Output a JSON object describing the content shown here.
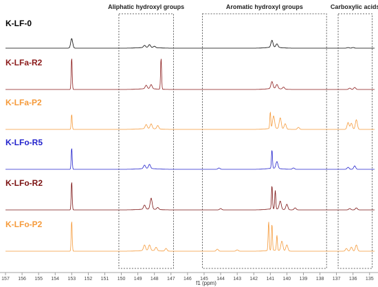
{
  "chart_data": {
    "type": "line",
    "xlabel": "f1 (ppm)",
    "xlim": [
      157,
      134.7
    ],
    "x_ticks": [
      157,
      156,
      155,
      154,
      153,
      152,
      151,
      150,
      149,
      148,
      147,
      146,
      145,
      144,
      143,
      142,
      141,
      140,
      139,
      138,
      137,
      136,
      135
    ],
    "regions": [
      {
        "label": "Aliphatic hydroxyl groups",
        "from": 150.15,
        "to": 146.85
      },
      {
        "label": "Aromatic hydroxyl groups",
        "from": 145.1,
        "to": 137.6
      },
      {
        "label": "Carboxylic acids",
        "from": 136.9,
        "to": 134.85
      }
    ],
    "series": [
      {
        "name": "K-LF-0",
        "color": "#000000",
        "peaks": [
          [
            153.0,
            14
          ],
          [
            148.6,
            3
          ],
          [
            148.3,
            4
          ],
          [
            148.0,
            2
          ],
          [
            140.9,
            10
          ],
          [
            140.6,
            5
          ],
          [
            136.3,
            1
          ],
          [
            136.0,
            1
          ]
        ]
      },
      {
        "name": "K-LFa-R2",
        "color": "#8b1a1a",
        "peaks": [
          [
            153.0,
            46
          ],
          [
            148.5,
            5
          ],
          [
            148.2,
            6
          ],
          [
            147.6,
            45
          ],
          [
            140.9,
            10
          ],
          [
            140.6,
            6
          ],
          [
            140.2,
            3
          ],
          [
            136.2,
            2
          ],
          [
            135.9,
            3
          ]
        ]
      },
      {
        "name": "K-LFa-P2",
        "color": "#f59a3a",
        "peaks": [
          [
            153.0,
            22
          ],
          [
            148.5,
            6
          ],
          [
            148.2,
            7
          ],
          [
            147.8,
            5
          ],
          [
            141.0,
            24
          ],
          [
            140.8,
            18
          ],
          [
            140.4,
            16
          ],
          [
            140.1,
            8
          ],
          [
            139.3,
            3
          ],
          [
            136.3,
            10
          ],
          [
            136.1,
            9
          ],
          [
            135.8,
            14
          ]
        ]
      },
      {
        "name": "K-LFo-R5",
        "color": "#2222cc",
        "peaks": [
          [
            153.0,
            31
          ],
          [
            148.6,
            5
          ],
          [
            148.3,
            6
          ],
          [
            144.1,
            2
          ],
          [
            140.9,
            27
          ],
          [
            140.6,
            10
          ],
          [
            139.6,
            2
          ],
          [
            136.3,
            3
          ],
          [
            135.9,
            5
          ]
        ]
      },
      {
        "name": "K-LFo-R2",
        "color": "#7a1010",
        "peaks": [
          [
            153.0,
            41
          ],
          [
            148.6,
            6
          ],
          [
            148.2,
            16
          ],
          [
            147.8,
            3
          ],
          [
            144.0,
            2
          ],
          [
            140.9,
            34
          ],
          [
            140.7,
            27
          ],
          [
            140.4,
            12
          ],
          [
            140.0,
            8
          ],
          [
            139.5,
            3
          ],
          [
            136.2,
            2
          ],
          [
            135.8,
            3
          ]
        ]
      },
      {
        "name": "K-LFo-P2",
        "color": "#f59a3a",
        "peaks": [
          [
            153.0,
            44
          ],
          [
            148.6,
            8
          ],
          [
            148.3,
            8
          ],
          [
            147.9,
            5
          ],
          [
            147.3,
            4
          ],
          [
            144.2,
            3
          ],
          [
            143.0,
            2
          ],
          [
            141.1,
            42
          ],
          [
            140.9,
            38
          ],
          [
            140.6,
            22
          ],
          [
            140.3,
            14
          ],
          [
            140.0,
            9
          ],
          [
            136.4,
            4
          ],
          [
            136.1,
            6
          ],
          [
            135.8,
            9
          ]
        ]
      }
    ]
  }
}
